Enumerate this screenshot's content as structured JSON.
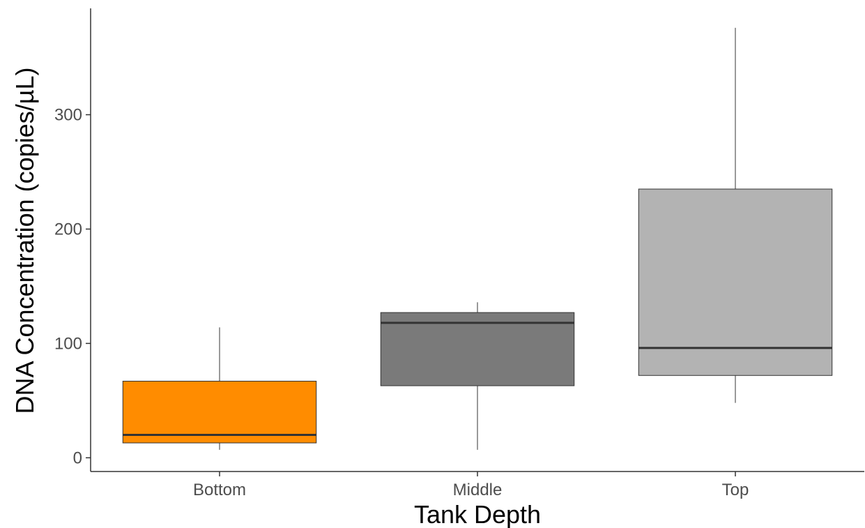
{
  "chart_data": {
    "type": "boxplot",
    "title": "",
    "xlabel": "Tank Depth",
    "ylabel": "DNA Concentration (copies/µL)",
    "ylim": [
      -12,
      393
    ],
    "yticks": [
      0,
      100,
      200,
      300
    ],
    "grid": false,
    "legend": "none",
    "categories": [
      "Bottom",
      "Middle",
      "Top"
    ],
    "boxes": [
      {
        "category": "Bottom",
        "whisker_low": 7,
        "q1": 13,
        "median": 20,
        "q3": 67,
        "whisker_high": 114,
        "fill": "#ff8c00"
      },
      {
        "category": "Middle",
        "whisker_low": 7,
        "q1": 63,
        "median": 118,
        "q3": 127,
        "whisker_high": 136,
        "fill": "#7a7a7a"
      },
      {
        "category": "Top",
        "whisker_low": 48,
        "q1": 72,
        "median": 96,
        "q3": 235,
        "whisker_high": 376,
        "fill": "#b3b3b3"
      }
    ]
  }
}
